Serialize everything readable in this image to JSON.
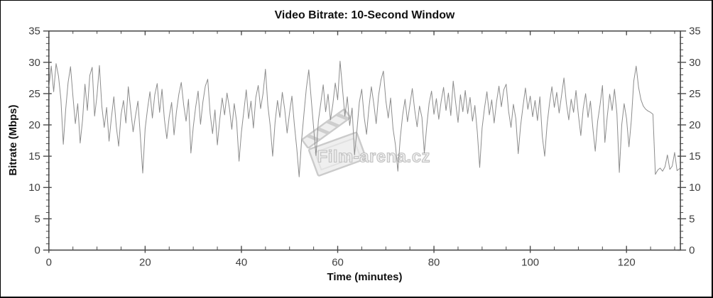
{
  "watermark": {
    "text": "Film-arena.cz",
    "color": "#c2c2c2",
    "icon": "clapperboard-icon"
  },
  "colors": {
    "line": "#8c8c8c",
    "axis": "#4a4a4a",
    "tick_label": "#3f3f3f",
    "title": "#111111",
    "background": "#ffffff",
    "page_border": "#000000"
  },
  "chart_data": {
    "type": "line",
    "title": "Video Bitrate: 10-Second Window",
    "xlabel": "Time (minutes)",
    "ylabel": "Bitrate (Mbps)",
    "xlim": [
      0,
      131.2
    ],
    "ylim": [
      0,
      35
    ],
    "x_major_ticks": [
      0,
      20,
      40,
      60,
      80,
      100,
      120
    ],
    "x_tick_labels": [
      "0",
      "20",
      "40",
      "60",
      "80",
      "100",
      "120"
    ],
    "x_minor_step": 5,
    "y_major_ticks": [
      0,
      5,
      10,
      15,
      20,
      25,
      30,
      35
    ],
    "y_tick_labels": [
      "0",
      "5",
      "10",
      "15",
      "20",
      "25",
      "30",
      "35"
    ],
    "y_minor_step": 1,
    "grid": false,
    "legend": false,
    "mirrored_axes": true,
    "x_step_minutes": 0.5,
    "x_start": 0,
    "series_name": "video-bitrate-mbps",
    "values": [
      26.0,
      29.4,
      25.3,
      29.8,
      27.8,
      24.1,
      16.9,
      22.5,
      26.8,
      29.3,
      24.6,
      20.2,
      23.4,
      17.1,
      20.8,
      26.5,
      22.3,
      27.9,
      29.2,
      21.4,
      24.7,
      29.5,
      23.0,
      19.6,
      22.8,
      17.4,
      21.2,
      24.5,
      19.8,
      16.6,
      21.7,
      23.9,
      20.3,
      26.1,
      22.4,
      18.9,
      21.5,
      23.8,
      18.2,
      12.3,
      19.4,
      22.6,
      25.3,
      21.1,
      24.8,
      26.6,
      22.0,
      25.7,
      20.9,
      17.8,
      21.3,
      23.6,
      18.4,
      22.1,
      24.9,
      26.8,
      23.2,
      20.6,
      24.1,
      15.5,
      19.7,
      22.9,
      25.4,
      20.1,
      23.7,
      26.2,
      27.3,
      21.8,
      18.6,
      22.4,
      16.8,
      20.9,
      24.3,
      21.6,
      25.1,
      22.7,
      19.3,
      23.4,
      20.5,
      14.2,
      18.9,
      22.2,
      25.6,
      21.0,
      23.8,
      19.5,
      24.4,
      26.3,
      22.6,
      25.0,
      28.9,
      23.1,
      19.8,
      15.0,
      20.4,
      23.9,
      21.2,
      25.2,
      22.5,
      18.7,
      21.9,
      24.6,
      20.1,
      16.3,
      11.7,
      17.5,
      21.8,
      25.9,
      28.8,
      24.2,
      19.6,
      15.1,
      20.7,
      23.5,
      26.4,
      22.1,
      24.9,
      20.8,
      23.3,
      26.7,
      24.0,
      30.2,
      25.8,
      21.4,
      24.5,
      19.9,
      22.7,
      15.2,
      19.1,
      23.6,
      25.7,
      21.3,
      18.5,
      22.8,
      26.1,
      23.4,
      20.2,
      24.7,
      27.2,
      28.6,
      23.9,
      21.1,
      24.3,
      19.4,
      16.8,
      12.6,
      17.9,
      21.6,
      24.1,
      20.5,
      23.2,
      25.8,
      22.4,
      19.7,
      23.0,
      21.2,
      15.5,
      19.8,
      23.5,
      25.4,
      21.7,
      24.2,
      20.9,
      23.8,
      26.0,
      22.3,
      25.1,
      21.5,
      27.0,
      23.6,
      20.4,
      24.8,
      22.1,
      25.5,
      21.8,
      24.4,
      20.6,
      23.1,
      18.9,
      13.2,
      19.5,
      22.7,
      25.3,
      21.6,
      24.0,
      20.3,
      23.7,
      26.2,
      22.9,
      25.6,
      26.5,
      22.2,
      19.6,
      23.3,
      21.0,
      15.4,
      19.9,
      23.0,
      25.9,
      22.5,
      24.6,
      21.3,
      23.9,
      20.7,
      24.5,
      18.2,
      15.0,
      20.1,
      23.4,
      26.1,
      22.8,
      25.2,
      21.9,
      24.7,
      27.5,
      23.5,
      20.8,
      24.1,
      22.0,
      25.5,
      21.6,
      18.3,
      22.6,
      25.0,
      21.2,
      23.8,
      19.5,
      15.8,
      20.6,
      23.2,
      26.3,
      17.2,
      21.4,
      24.9,
      22.3,
      25.7,
      21.8,
      12.4,
      20.0,
      23.4,
      21.0,
      16.5,
      20.8,
      27.0,
      29.4,
      26.0,
      24.0,
      23.0,
      22.5,
      22.2,
      22.0,
      21.7,
      12.1,
      12.8,
      13.1,
      12.6,
      13.3,
      15.2,
      12.9,
      13.4,
      15.6,
      12.7,
      13.0
    ]
  }
}
